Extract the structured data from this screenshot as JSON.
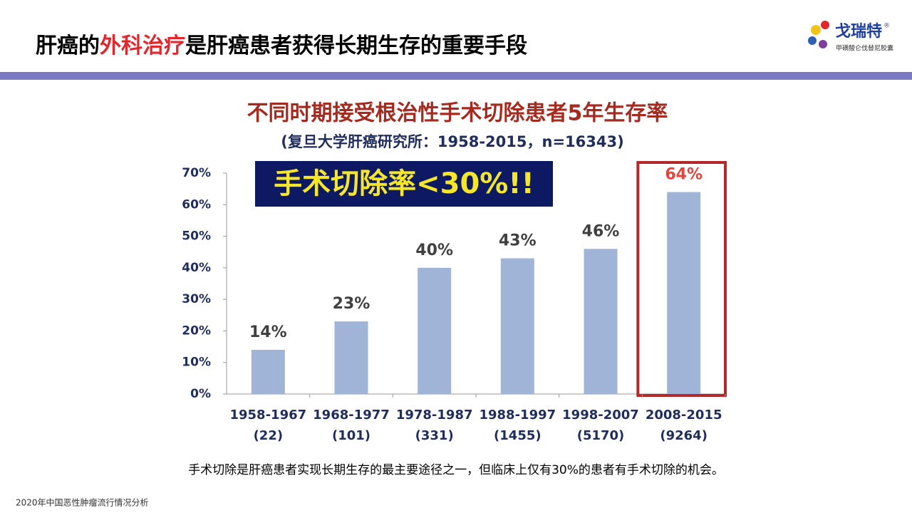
{
  "header": {
    "title_parts": [
      "肝癌的",
      "外科治疗",
      "是肝癌患者获得长期生存的重要手段"
    ]
  },
  "logo": {
    "name": "戈瑞特",
    "mark": "®",
    "subtitle": "甲磺酸仑伐替尼胶囊"
  },
  "chart_data": {
    "type": "bar",
    "title": "不同时期接受根治性手术切除患者5年生存率",
    "subtitle": "(复旦大学肝癌研究所：1958-2015，n=16343)",
    "annotation": "手术切除率<30%!!",
    "categories": [
      "1958-1967",
      "1968-1977",
      "1978-1987",
      "1988-1997",
      "1998-2007",
      "2008-2015"
    ],
    "category_counts": [
      "(22)",
      "(101)",
      "(331)",
      "(1455)",
      "(5170)",
      "(9264)"
    ],
    "values": [
      14,
      23,
      40,
      43,
      46,
      64
    ],
    "value_labels": [
      "14%",
      "23%",
      "40%",
      "43%",
      "46%",
      "64%"
    ],
    "value_label_colors": [
      "#404040",
      "#404040",
      "#404040",
      "#404040",
      "#404040",
      "#e8423a"
    ],
    "color": "#9fb4d6",
    "ylim": [
      0,
      70
    ],
    "yticks": [
      {
        "value": 0,
        "label": "0%"
      },
      {
        "value": 10,
        "label": "10%"
      },
      {
        "value": 20,
        "label": "20%"
      },
      {
        "value": 30,
        "label": "30%"
      },
      {
        "value": 40,
        "label": "40%"
      },
      {
        "value": 50,
        "label": "50%"
      },
      {
        "value": 60,
        "label": "60%"
      },
      {
        "value": 70,
        "label": "70%"
      }
    ]
  },
  "caption": "手术切除是肝癌患者实现长期生存的最主要途径之一，但临床上仅有30%的患者有手术切除的机会。",
  "footnote": "2020年中国恶性肿瘤流行情况分析"
}
